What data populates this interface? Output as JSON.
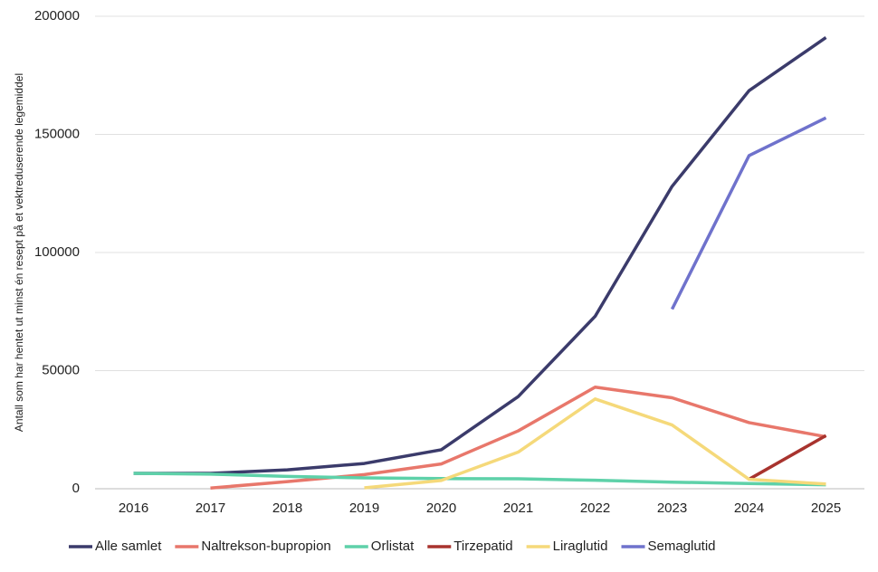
{
  "chart_data": {
    "type": "line",
    "y_label": "Antall som har hentet ut minst én resept på et vektreduserende legemiddel",
    "categories": [
      "2016",
      "2017",
      "2018",
      "2019",
      "2020",
      "2021",
      "2022",
      "2023",
      "2024",
      "2025"
    ],
    "series": [
      {
        "name": "Alle samlet",
        "color": "#3b3b6b",
        "values": [
          6500,
          6500,
          8000,
          10700,
          16500,
          39000,
          73000,
          128000,
          168500,
          191000
        ]
      },
      {
        "name": "Naltrekson-bupropion",
        "color": "#e8776b",
        "values": [
          null,
          300,
          3000,
          6000,
          10500,
          24500,
          43000,
          38500,
          28000,
          22000
        ]
      },
      {
        "name": "Orlistat",
        "color": "#5ed1a9",
        "values": [
          6500,
          6200,
          5200,
          4600,
          4300,
          4200,
          3600,
          2800,
          2200,
          1700
        ]
      },
      {
        "name": "Tirzepatid",
        "color": "#a8332e",
        "values": [
          null,
          null,
          null,
          null,
          null,
          null,
          null,
          null,
          4000,
          22500
        ]
      },
      {
        "name": "Liraglutid",
        "color": "#f5d97a",
        "values": [
          null,
          null,
          null,
          400,
          3500,
          15500,
          38000,
          27000,
          4000,
          2000
        ]
      },
      {
        "name": "Semaglutid",
        "color": "#6f72cc",
        "values": [
          null,
          null,
          null,
          null,
          null,
          null,
          null,
          76000,
          141000,
          157000
        ]
      }
    ],
    "ylim": [
      0,
      200000
    ],
    "yticks": [
      0,
      50000,
      100000,
      150000,
      200000
    ],
    "grid": true
  }
}
